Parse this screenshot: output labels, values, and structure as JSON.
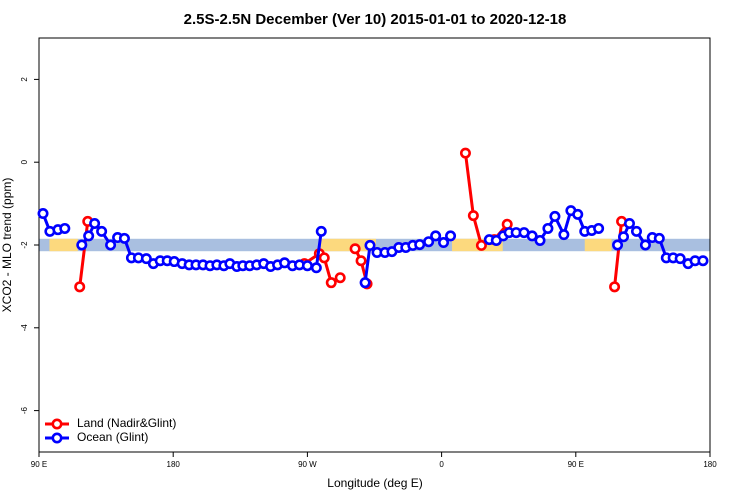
{
  "chart_data": {
    "type": "line",
    "title": "2.5S-2.5N December (Ver 10)   2015-01-01 to 2020-12-18",
    "x_label": "Longitude (deg E)",
    "y_label": "XCO2 - MLO trend (ppm)",
    "xlim": [
      90,
      540
    ],
    "ylim": [
      -7,
      3
    ],
    "xticks": [
      {
        "value": 90,
        "label": "90 E"
      },
      180,
      {
        "value": 270,
        "label": "90 W"
      },
      {
        "value": 360,
        "label": "0"
      },
      {
        "value": 450,
        "label": "90 E"
      },
      {
        "value": 540,
        "label": "180"
      }
    ],
    "yticks": [
      -6,
      -4,
      -2,
      0,
      2
    ],
    "band": {
      "ylim": [
        -2.15,
        -1.85
      ],
      "color": "#a9bfe0",
      "land_color": "#fcd97e",
      "land_spans": [
        [
          97,
          116
        ],
        [
          279,
          316
        ],
        [
          367,
          401
        ],
        [
          456,
          474
        ]
      ]
    },
    "legend": "bottom-left",
    "series": [
      {
        "name": "Land (Nadir&Glint)",
        "color": "#ff0000",
        "x": [
          117.3,
          122.7,
          200,
          268,
          278,
          281.3,
          286,
          292,
          297,
          302,
          306,
          310,
          340,
          376,
          381.3,
          386.7,
          395.3,
          404,
          440,
          476,
          480.7
        ],
        "values": [
          -3.01,
          -1.43,
          null,
          -2.45,
          -2.21,
          -2.31,
          -2.91,
          -2.79,
          null,
          -2.09,
          -2.38,
          -2.94,
          null,
          0.22,
          -1.29,
          -2.01,
          -1.87,
          -1.5,
          null,
          -3.01,
          -1.43
        ]
      },
      {
        "name": "Ocean (Glint)",
        "color": "#0000ff",
        "x": [
          92.7,
          97.3,
          102.7,
          107.3,
          112,
          118.7,
          123.3,
          127.3,
          132,
          138,
          142.7,
          147.3,
          152,
          156.7,
          162,
          166.7,
          171.3,
          176,
          180.7,
          186,
          190.7,
          195.3,
          200,
          204.7,
          209.3,
          214,
          218,
          222.7,
          226.7,
          231.3,
          236,
          240.7,
          245.3,
          250,
          254.7,
          260,
          264.7,
          270,
          276,
          279.3,
          300,
          308.7,
          312,
          316.7,
          322,
          326.7,
          331.3,
          336,
          340.7,
          345.3,
          351.3,
          356,
          361.3,
          366,
          380,
          392,
          396.7,
          401.3,
          405.3,
          410,
          415.3,
          420.7,
          426,
          431.3,
          436,
          442,
          446.7,
          451.3,
          456,
          460.7,
          465.3,
          470,
          478,
          482,
          486,
          490.7,
          496.7,
          501.3,
          506,
          510.7,
          515.3,
          520,
          525.3,
          530,
          535.3
        ],
        "values": [
          -1.24,
          -1.67,
          -1.63,
          -1.6,
          null,
          -2.0,
          -1.78,
          -1.48,
          -1.67,
          -2.0,
          -1.82,
          -1.84,
          -2.31,
          -2.31,
          -2.33,
          -2.45,
          -2.38,
          -2.38,
          -2.4,
          -2.45,
          -2.48,
          -2.48,
          -2.48,
          -2.5,
          -2.48,
          -2.5,
          -2.45,
          -2.52,
          -2.5,
          -2.5,
          -2.48,
          -2.45,
          -2.52,
          -2.48,
          -2.43,
          -2.5,
          -2.48,
          -2.5,
          -2.55,
          -1.67,
          null,
          -2.91,
          -2.01,
          -2.18,
          -2.18,
          -2.16,
          -2.06,
          -2.06,
          -2.01,
          -1.99,
          -1.92,
          -1.78,
          -1.94,
          -1.78,
          null,
          -1.87,
          -1.89,
          -1.78,
          -1.7,
          -1.7,
          -1.7,
          -1.78,
          -1.89,
          -1.6,
          -1.31,
          -1.75,
          -1.17,
          -1.26,
          -1.67,
          -1.65,
          -1.6,
          null,
          -2.0,
          -1.8,
          -1.48,
          -1.67,
          -2.0,
          -1.82,
          -1.84,
          -2.31,
          -2.31,
          -2.33,
          -2.45,
          -2.38,
          -2.38
        ]
      }
    ]
  }
}
